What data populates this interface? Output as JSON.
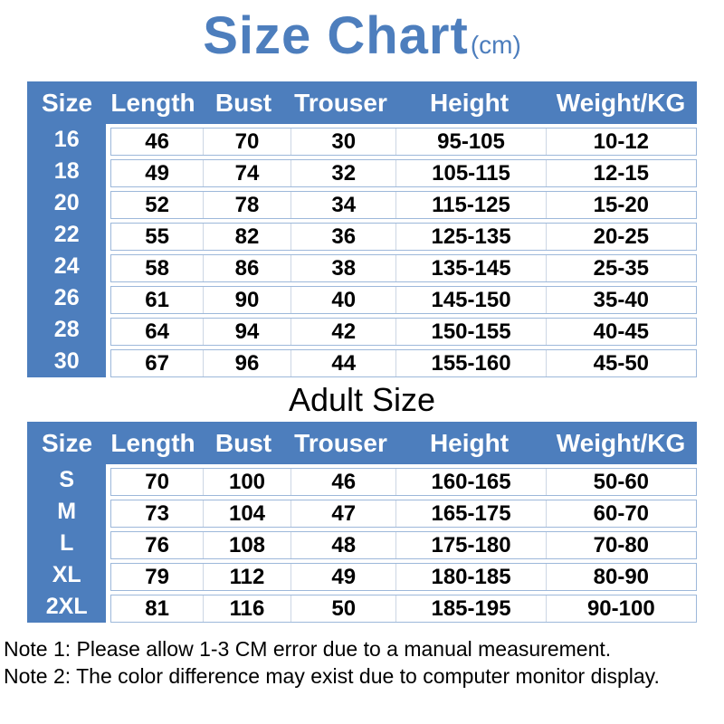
{
  "title": {
    "text": "Size Chart",
    "unit": "(cm)"
  },
  "adult_heading": "Adult Size",
  "notes": [
    "Note 1: Please allow 1-3 CM error due to a manual measurement.",
    "Note 2: The color difference may exist due to computer monitor display."
  ],
  "colors": {
    "accent_blue": "#4d7ebd",
    "row_border": "#9db8da",
    "column_divider": "#ccd6e4",
    "header_text": "#ffffff",
    "body_text": "#000000"
  },
  "chart_data": [
    {
      "type": "table",
      "section": "top",
      "columns": [
        "Size",
        "Length",
        "Bust",
        "Trouser",
        "Height",
        "Weight/KG"
      ],
      "rows": [
        [
          "16",
          "46",
          "70",
          "30",
          "95-105",
          "10-12"
        ],
        [
          "18",
          "49",
          "74",
          "32",
          "105-115",
          "12-15"
        ],
        [
          "20",
          "52",
          "78",
          "34",
          "115-125",
          "15-20"
        ],
        [
          "22",
          "55",
          "82",
          "36",
          "125-135",
          "20-25"
        ],
        [
          "24",
          "58",
          "86",
          "38",
          "135-145",
          "25-35"
        ],
        [
          "26",
          "61",
          "90",
          "40",
          "145-150",
          "35-40"
        ],
        [
          "28",
          "64",
          "94",
          "42",
          "150-155",
          "40-45"
        ],
        [
          "30",
          "67",
          "96",
          "44",
          "155-160",
          "45-50"
        ]
      ]
    },
    {
      "type": "table",
      "section": "Adult Size",
      "columns": [
        "Size",
        "Length",
        "Bust",
        "Trouser",
        "Height",
        "Weight/KG"
      ],
      "rows": [
        [
          "S",
          "70",
          "100",
          "46",
          "160-165",
          "50-60"
        ],
        [
          "M",
          "73",
          "104",
          "47",
          "165-175",
          "60-70"
        ],
        [
          "L",
          "76",
          "108",
          "48",
          "175-180",
          "70-80"
        ],
        [
          "XL",
          "79",
          "112",
          "49",
          "180-185",
          "80-90"
        ],
        [
          "2XL",
          "81",
          "116",
          "50",
          "185-195",
          "90-100"
        ]
      ]
    }
  ]
}
